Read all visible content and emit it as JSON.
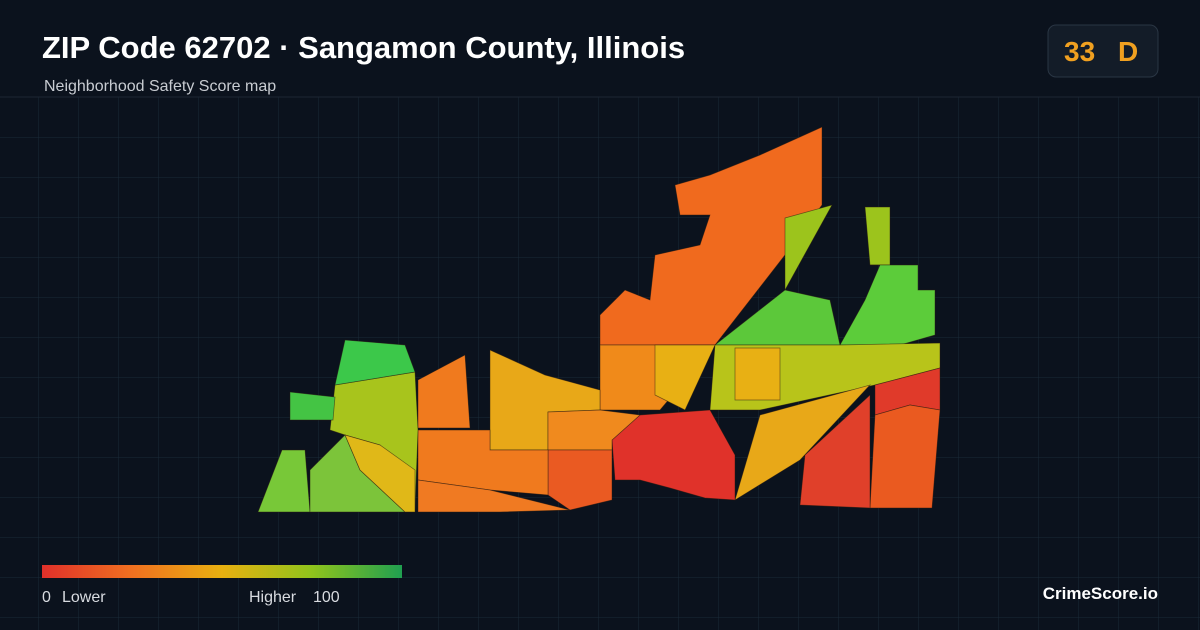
{
  "header": {
    "title": "ZIP Code 62702 · Sangamon County, Illinois",
    "subtitle": "Neighborhood Safety Score map"
  },
  "score": {
    "value": "33",
    "grade": "D"
  },
  "legend": {
    "min": "0",
    "low_label": "Lower",
    "high_label": "Higher",
    "max": "100"
  },
  "brand": "CrimeScore.io"
}
